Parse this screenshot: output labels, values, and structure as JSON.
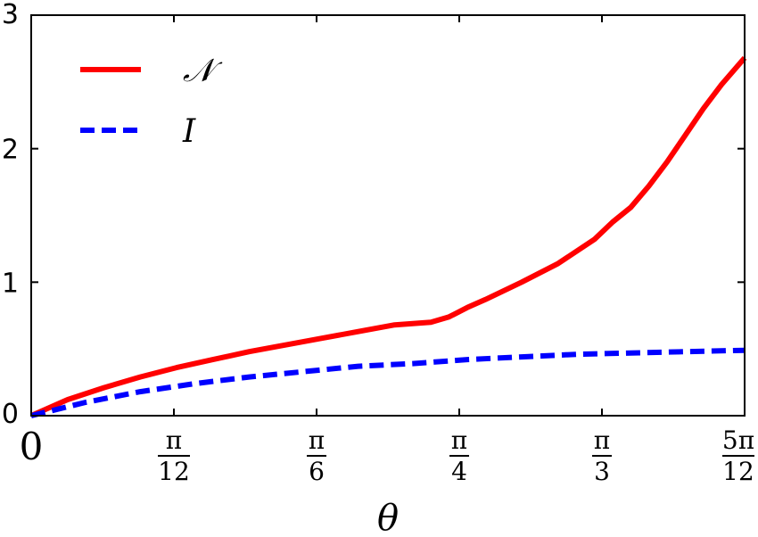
{
  "chart_data": {
    "type": "line",
    "xlabel": "θ",
    "ylabel": "",
    "title": "",
    "xlim": [
      0,
      1.309
    ],
    "ylim": [
      0,
      3
    ],
    "y_ticks": [
      {
        "value": 0,
        "label": "0"
      },
      {
        "value": 1,
        "label": "1"
      },
      {
        "value": 2,
        "label": "2"
      },
      {
        "value": 3,
        "label": "3"
      }
    ],
    "x_ticks": [
      {
        "value": 0,
        "label": "0"
      },
      {
        "value": 0.2618,
        "num": "π",
        "den": "12"
      },
      {
        "value": 0.5236,
        "num": "π",
        "den": "6"
      },
      {
        "value": 0.7854,
        "num": "π",
        "den": "4"
      },
      {
        "value": 1.0472,
        "num": "π",
        "den": "3"
      },
      {
        "value": 1.309,
        "num": "5π",
        "den": "12"
      }
    ],
    "grid": false,
    "legend_position": "top-left",
    "series": [
      {
        "name": "𝒩",
        "color": "#ff0000",
        "style": "solid",
        "x": [
          0,
          0.0667,
          0.1333,
          0.2,
          0.2667,
          0.3333,
          0.4,
          0.4667,
          0.5333,
          0.6,
          0.6667,
          0.7333,
          0.7667,
          0.8,
          0.8333,
          0.9,
          0.9667,
          1.0333,
          1.0667,
          1.1,
          1.1333,
          1.1667,
          1.2,
          1.2333,
          1.2667,
          1.309
        ],
        "y": [
          0,
          0.12,
          0.21,
          0.29,
          0.36,
          0.42,
          0.48,
          0.53,
          0.58,
          0.63,
          0.68,
          0.7,
          0.74,
          0.81,
          0.87,
          1.0,
          1.14,
          1.32,
          1.45,
          1.56,
          1.72,
          1.9,
          2.1,
          2.3,
          2.48,
          2.68
        ]
      },
      {
        "name": "I",
        "color": "#0000ff",
        "style": "dashed",
        "x": [
          0,
          0.1,
          0.2,
          0.3,
          0.4,
          0.5,
          0.6,
          0.7,
          0.8,
          0.9,
          1.0,
          1.1,
          1.2,
          1.309
        ],
        "y": [
          0,
          0.1,
          0.18,
          0.24,
          0.29,
          0.33,
          0.37,
          0.39,
          0.42,
          0.44,
          0.46,
          0.47,
          0.48,
          0.49
        ]
      }
    ]
  }
}
